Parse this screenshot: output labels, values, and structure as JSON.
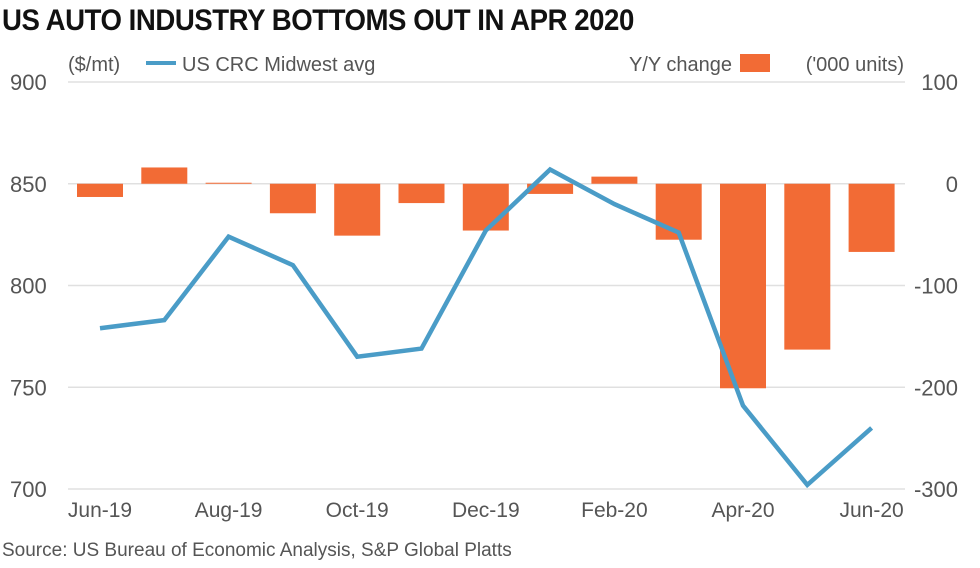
{
  "chart_data": {
    "type": "bar+line",
    "title": "US AUTO INDUSTRY BOTTOMS OUT IN APR 2020",
    "source": "Source: US Bureau of Economic Analysis, S&P Global Platts",
    "categories": [
      "Jun-19",
      "Jul-19",
      "Aug-19",
      "Sep-19",
      "Oct-19",
      "Nov-19",
      "Dec-19",
      "Jan-20",
      "Feb-20",
      "Mar-20",
      "Apr-20",
      "May-20",
      "Jun-20"
    ],
    "x_tick_labels": [
      "Jun-19",
      "Aug-19",
      "Oct-19",
      "Dec-19",
      "Feb-20",
      "Apr-20",
      "Jun-20"
    ],
    "left_axis": {
      "unit_label": "($/mt)",
      "ylim": [
        700,
        900
      ],
      "ticks": [
        700,
        750,
        800,
        850,
        900
      ]
    },
    "right_axis": {
      "unit_label": "('000 units)",
      "ylim": [
        -300,
        100
      ],
      "ticks": [
        -300,
        -200,
        -100,
        0,
        100
      ]
    },
    "grid": true,
    "legend_placement": "top",
    "series": [
      {
        "name": "US CRC Midwest avg",
        "type": "line",
        "axis": "left",
        "color": "#4a9cc7",
        "values": [
          779,
          783,
          824,
          810,
          765,
          769,
          827,
          857,
          840,
          826,
          741,
          702,
          730
        ]
      },
      {
        "name": "Y/Y change",
        "type": "bar",
        "axis": "right",
        "color": "#f26b35",
        "values": [
          -13,
          16,
          1,
          -29,
          -51,
          -19,
          -46,
          -10,
          7,
          -55,
          -201,
          -163,
          -67
        ]
      }
    ]
  }
}
